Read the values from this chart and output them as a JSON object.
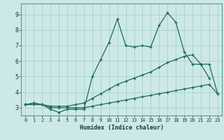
{
  "title": "",
  "xlabel": "Humidex (Indice chaleur)",
  "xlim": [
    -0.5,
    23.5
  ],
  "ylim": [
    2.5,
    9.7
  ],
  "xticks": [
    0,
    1,
    2,
    3,
    4,
    5,
    6,
    7,
    8,
    9,
    10,
    11,
    12,
    13,
    14,
    15,
    16,
    17,
    18,
    19,
    20,
    21,
    22,
    23
  ],
  "yticks": [
    3,
    4,
    5,
    6,
    7,
    8,
    9
  ],
  "bg_color": "#cde8e8",
  "line_color": "#1a6b5a",
  "grid_color": "#aacfcf",
  "series1_x": [
    0,
    1,
    2,
    3,
    4,
    5,
    6,
    7,
    8,
    9,
    10,
    11,
    12,
    13,
    14,
    15,
    16,
    17,
    18,
    19,
    20,
    21,
    22
  ],
  "series1_y": [
    3.2,
    3.3,
    3.2,
    2.9,
    2.7,
    2.9,
    2.9,
    2.9,
    5.0,
    6.1,
    7.2,
    8.7,
    7.0,
    6.9,
    7.0,
    6.9,
    8.3,
    9.1,
    8.5,
    6.6,
    5.8,
    5.8,
    4.9
  ],
  "series2_x": [
    0,
    1,
    2,
    3,
    4,
    5,
    6,
    7,
    8,
    9,
    10,
    11,
    12,
    13,
    14,
    15,
    16,
    17,
    18,
    19,
    20,
    21,
    22,
    23
  ],
  "series2_y": [
    3.2,
    3.3,
    3.2,
    3.1,
    3.1,
    3.1,
    3.2,
    3.3,
    3.6,
    3.9,
    4.2,
    4.5,
    4.7,
    4.9,
    5.1,
    5.3,
    5.6,
    5.9,
    6.1,
    6.3,
    6.4,
    5.8,
    5.8,
    3.9
  ],
  "series3_x": [
    0,
    1,
    2,
    3,
    4,
    5,
    6,
    7,
    8,
    9,
    10,
    11,
    12,
    13,
    14,
    15,
    16,
    17,
    18,
    19,
    20,
    21,
    22,
    23
  ],
  "series3_y": [
    3.2,
    3.2,
    3.2,
    3.0,
    3.0,
    3.0,
    3.0,
    3.0,
    3.1,
    3.2,
    3.3,
    3.4,
    3.5,
    3.6,
    3.7,
    3.8,
    3.9,
    4.0,
    4.1,
    4.2,
    4.3,
    4.4,
    4.5,
    3.9
  ]
}
